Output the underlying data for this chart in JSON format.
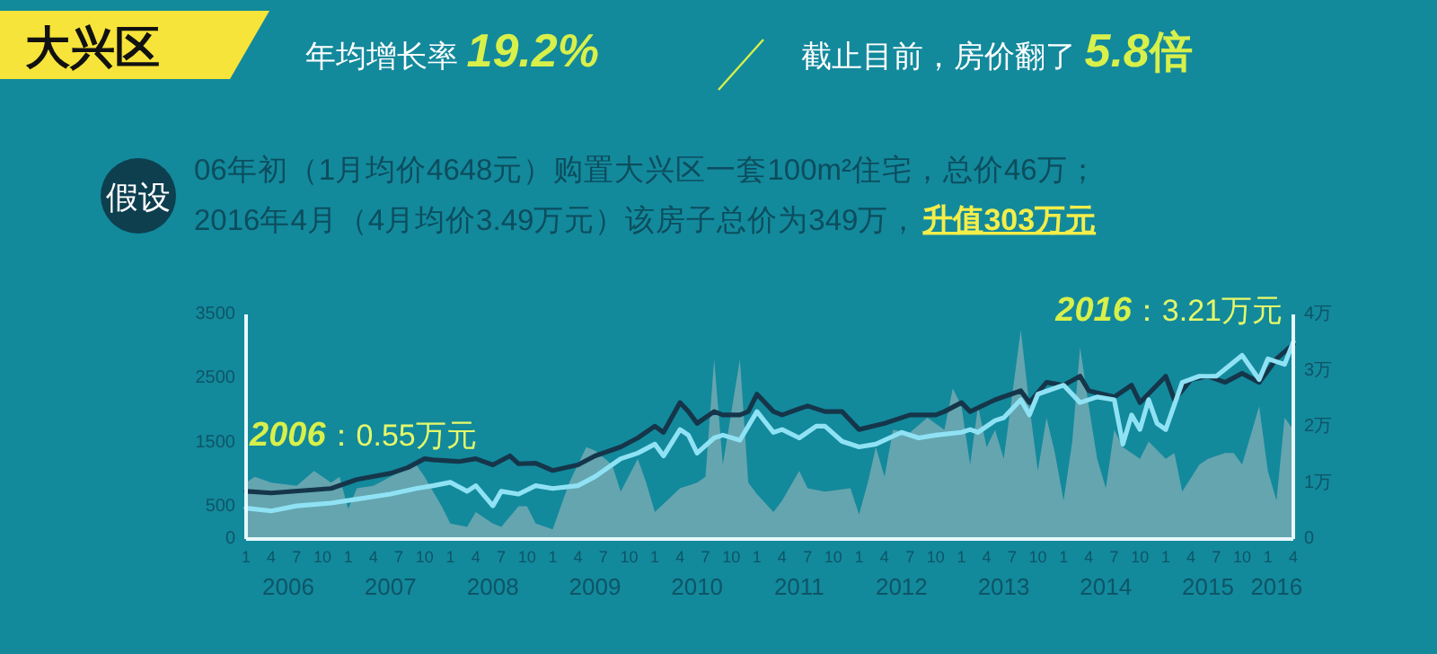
{
  "chart_data": {
    "type": "line",
    "title": "大兴区",
    "annotations": [
      "年均增长率 19.2%",
      "截止目前，房价翻了 5.8倍",
      "假设",
      "06年初（1月均价4648元）购置大兴区一套100m²住宅，总价46万；",
      "2016年4月（4月均价3.49万元）该房子总价为349万，",
      "升值303万元",
      "2006：0.55万元",
      "2016：3.21万元"
    ],
    "xlim": [
      "2006-01",
      "2016-04"
    ],
    "xticks": [
      {
        "value": "2006-01",
        "label": "1"
      },
      {
        "value": "2006-04",
        "label": "4"
      },
      {
        "value": "2006-07",
        "label": "7"
      },
      {
        "value": "2006-10",
        "label": "10"
      },
      {
        "value": "2007-01",
        "label": "1"
      },
      {
        "value": "2007-04",
        "label": "4"
      },
      {
        "value": "2007-07",
        "label": "7"
      },
      {
        "value": "2007-10",
        "label": "10"
      },
      {
        "value": "2008-01",
        "label": "1"
      },
      {
        "value": "2008-04",
        "label": "4"
      },
      {
        "value": "2008-07",
        "label": "7"
      },
      {
        "value": "2008-10",
        "label": "10"
      },
      {
        "value": "2009-01",
        "label": "1"
      },
      {
        "value": "2009-04",
        "label": "4"
      },
      {
        "value": "2009-07",
        "label": "7"
      },
      {
        "value": "2009-10",
        "label": "10"
      },
      {
        "value": "2010-01",
        "label": "1"
      },
      {
        "value": "2010-04",
        "label": "4"
      },
      {
        "value": "2010-07",
        "label": "7"
      },
      {
        "value": "2010-10",
        "label": "10"
      },
      {
        "value": "2011-01",
        "label": "1"
      },
      {
        "value": "2011-04",
        "label": "4"
      },
      {
        "value": "2011-07",
        "label": "7"
      },
      {
        "value": "2011-10",
        "label": "10"
      },
      {
        "value": "2012-01",
        "label": "1"
      },
      {
        "value": "2012-04",
        "label": "4"
      },
      {
        "value": "2012-07",
        "label": "7"
      },
      {
        "value": "2012-10",
        "label": "10"
      },
      {
        "value": "2013-01",
        "label": "1"
      },
      {
        "value": "2013-04",
        "label": "4"
      },
      {
        "value": "2013-07",
        "label": "7"
      },
      {
        "value": "2013-10",
        "label": "10"
      },
      {
        "value": "2014-01",
        "label": "1"
      },
      {
        "value": "2014-04",
        "label": "4"
      },
      {
        "value": "2014-07",
        "label": "7"
      },
      {
        "value": "2014-10",
        "label": "10"
      },
      {
        "value": "2015-01",
        "label": "1"
      },
      {
        "value": "2015-04",
        "label": "4"
      },
      {
        "value": "2015-07",
        "label": "7"
      },
      {
        "value": "2015-10",
        "label": "10"
      },
      {
        "value": "2016-01",
        "label": "1"
      },
      {
        "value": "2016-04",
        "label": "4"
      }
    ],
    "x2lim": [
      "2006-01",
      "2016-04"
    ],
    "x2ticks": [
      {
        "value": "2006-06",
        "label": "2006"
      },
      {
        "value": "2007-06",
        "label": "2007"
      },
      {
        "value": "2008-06",
        "label": "2008"
      },
      {
        "value": "2009-06",
        "label": "2009"
      },
      {
        "value": "2010-06",
        "label": "2010"
      },
      {
        "value": "2011-06",
        "label": "2011"
      },
      {
        "value": "2012-06",
        "label": "2012"
      },
      {
        "value": "2013-06",
        "label": "2013"
      },
      {
        "value": "2014-06",
        "label": "2014"
      },
      {
        "value": "2015-06",
        "label": "2015"
      },
      {
        "value": "2016-02",
        "label": "2016"
      }
    ],
    "ylim": [
      0,
      3500
    ],
    "yticks": [
      0,
      500,
      1500,
      2500,
      3500
    ],
    "y2lim": [
      0,
      4
    ],
    "y2ticks": [
      0,
      {
        "value": 1,
        "label": "1万"
      },
      {
        "value": 2,
        "label": "2万"
      },
      {
        "value": 3,
        "label": "3万"
      },
      {
        "value": 4,
        "label": "4万"
      }
    ],
    "grid": false,
    "series": [
      {
        "type": "area",
        "color": "#6fa9b1",
        "x": [
          "2006-01",
          "2006-02",
          "2006-04",
          "2006-07",
          "2006-09",
          "2006-11",
          "2006-12",
          "2007-01",
          "2007-02",
          "2007-04",
          "2007-06",
          "2007-09",
          "2007-10",
          "2007-12",
          "2008-01",
          "2008-03",
          "2008-04",
          "2008-06",
          "2008-07",
          "2008-09",
          "2008-10",
          "2008-11",
          "2009-01",
          "2009-03",
          "2009-05",
          "2009-06",
          "2009-08",
          "2009-09",
          "2009-11",
          "2009-12",
          "2010-01",
          "2010-04",
          "2010-06",
          "2010-07",
          "2010-08",
          "2010-09",
          "2010-11",
          "2010-12",
          "2011-01",
          "2011-03",
          "2011-04",
          "2011-06",
          "2011-07",
          "2011-09",
          "2011-12",
          "2012-01",
          "2012-02",
          "2012-03",
          "2012-04",
          "2012-05",
          "2012-07",
          "2012-09",
          "2012-11",
          "2012-12",
          "2013-01",
          "2013-02",
          "2013-03",
          "2013-04",
          "2013-05",
          "2013-06",
          "2013-08",
          "2013-09",
          "2013-10",
          "2013-11",
          "2013-12",
          "2014-01",
          "2014-02",
          "2014-03",
          "2014-04",
          "2014-05",
          "2014-06",
          "2014-07",
          "2014-08",
          "2014-10",
          "2014-11",
          "2015-01",
          "2015-02",
          "2015-03",
          "2015-05",
          "2015-06",
          "2015-08",
          "2015-09",
          "2015-10",
          "2015-12",
          "2016-01",
          "2016-02",
          "2016-03",
          "2016-04"
        ],
        "values": [
          880,
          970,
          880,
          830,
          1060,
          880,
          970,
          470,
          790,
          830,
          970,
          1160,
          970,
          510,
          240,
          190,
          420,
          240,
          190,
          510,
          510,
          240,
          150,
          880,
          1430,
          1380,
          1160,
          740,
          1250,
          880,
          420,
          790,
          880,
          970,
          2800,
          1160,
          2800,
          880,
          700,
          420,
          600,
          1060,
          790,
          740,
          790,
          380,
          880,
          1430,
          970,
          1700,
          1660,
          1890,
          1700,
          2350,
          2070,
          1160,
          2070,
          1430,
          1700,
          1250,
          3260,
          2070,
          1060,
          1890,
          1340,
          600,
          1520,
          2990,
          2070,
          1250,
          790,
          1700,
          1430,
          1250,
          1520,
          1250,
          1340,
          740,
          1160,
          1250,
          1340,
          1340,
          1160,
          2070,
          1060,
          600,
          1890,
          1700
        ]
      },
      {
        "type": "line",
        "axis": "y2",
        "color": "#15364a",
        "x": [
          "2006-01",
          "2006-04",
          "2006-11",
          "2007-02",
          "2007-06",
          "2007-08",
          "2007-10",
          "2007-11",
          "2008-02",
          "2008-04",
          "2008-06",
          "2008-08",
          "2008-09",
          "2008-11",
          "2009-01",
          "2009-04",
          "2009-06",
          "2009-09",
          "2009-11",
          "2010-01",
          "2010-02",
          "2010-04",
          "2010-05",
          "2010-06",
          "2010-08",
          "2010-09",
          "2010-11",
          "2010-12",
          "2011-01",
          "2011-03",
          "2011-04",
          "2011-06",
          "2011-07",
          "2011-09",
          "2011-11",
          "2012-01",
          "2012-04",
          "2012-07",
          "2012-10",
          "2012-11",
          "2013-01",
          "2013-02",
          "2013-05",
          "2013-08",
          "2013-09",
          "2013-11",
          "2014-01",
          "2014-03",
          "2014-04",
          "2014-07",
          "2014-09",
          "2014-10",
          "2015-01",
          "2015-02",
          "2015-04",
          "2015-06",
          "2015-08",
          "2015-10",
          "2015-12",
          "2016-02",
          "2016-04"
        ],
        "values": [
          0.85,
          0.82,
          0.9,
          1.06,
          1.17,
          1.27,
          1.43,
          1.41,
          1.38,
          1.43,
          1.32,
          1.48,
          1.34,
          1.35,
          1.22,
          1.32,
          1.48,
          1.64,
          1.8,
          2.01,
          1.9,
          2.43,
          2.27,
          2.06,
          2.27,
          2.21,
          2.21,
          2.27,
          2.58,
          2.27,
          2.21,
          2.32,
          2.37,
          2.27,
          2.27,
          1.95,
          2.06,
          2.21,
          2.21,
          2.27,
          2.43,
          2.27,
          2.48,
          2.64,
          2.43,
          2.79,
          2.74,
          2.9,
          2.64,
          2.53,
          2.74,
          2.43,
          2.9,
          2.48,
          2.84,
          2.9,
          2.79,
          2.95,
          2.79,
          3.21,
          3.47
        ]
      },
      {
        "type": "line",
        "axis": "y2",
        "color": "#8fe2f4",
        "x": [
          "2006-01",
          "2006-04",
          "2006-07",
          "2006-11",
          "2007-02",
          "2007-06",
          "2007-09",
          "2007-11",
          "2008-01",
          "2008-03",
          "2008-04",
          "2008-06",
          "2008-07",
          "2008-09",
          "2008-11",
          "2009-01",
          "2009-04",
          "2009-06",
          "2009-09",
          "2009-11",
          "2010-01",
          "2010-02",
          "2010-04",
          "2010-05",
          "2010-06",
          "2010-08",
          "2010-09",
          "2010-11",
          "2011-01",
          "2011-03",
          "2011-04",
          "2011-06",
          "2011-08",
          "2011-09",
          "2011-11",
          "2012-01",
          "2012-03",
          "2012-06",
          "2012-08",
          "2012-10",
          "2013-01",
          "2013-02",
          "2013-03",
          "2013-05",
          "2013-06",
          "2013-08",
          "2013-09",
          "2013-10",
          "2014-01",
          "2014-03",
          "2014-05",
          "2014-07",
          "2014-08",
          "2014-09",
          "2014-10",
          "2014-11",
          "2014-12",
          "2015-01",
          "2015-03",
          "2015-05",
          "2015-07",
          "2015-10",
          "2015-12",
          "2016-01",
          "2016-03",
          "2016-04"
        ],
        "values": [
          0.55,
          0.5,
          0.59,
          0.64,
          0.71,
          0.8,
          0.9,
          0.95,
          1.01,
          0.85,
          0.95,
          0.59,
          0.85,
          0.8,
          0.95,
          0.9,
          0.95,
          1.11,
          1.43,
          1.53,
          1.69,
          1.48,
          1.95,
          1.85,
          1.53,
          1.8,
          1.85,
          1.76,
          2.27,
          1.9,
          1.95,
          1.8,
          2.01,
          2.01,
          1.74,
          1.64,
          1.69,
          1.9,
          1.8,
          1.85,
          1.9,
          1.95,
          1.9,
          2.11,
          2.16,
          2.48,
          2.21,
          2.58,
          2.74,
          2.43,
          2.53,
          2.48,
          1.69,
          2.21,
          1.95,
          2.48,
          2.06,
          1.95,
          2.79,
          2.9,
          2.9,
          3.27,
          2.84,
          3.21,
          3.11,
          3.51
        ]
      }
    ]
  }
}
